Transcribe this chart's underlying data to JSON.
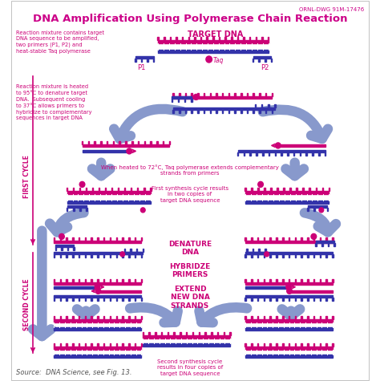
{
  "title": "DNA Amplification Using Polymerase Chain Reaction",
  "title_color": "#CC0088",
  "title_fontsize": 9.5,
  "bg_color": "#FFFFFF",
  "ornl_text": "ORNL-DWG 91M-17476",
  "ornl_color": "#CC0088",
  "ornl_fontsize": 5,
  "source_text": "Source:  DNA Science, see Fig. 13.",
  "source_color": "#555555",
  "source_fontsize": 6,
  "dna_pink": "#CC0077",
  "dna_blue": "#6666CC",
  "dna_dark_blue": "#3333AA",
  "strand_blue": "#9999CC",
  "arrow_color": "#8899CC",
  "text_color": "#CC0077",
  "first_cycle_label": "FIRST CYCLE",
  "second_cycle_label": "SECOND CYCLE",
  "step1_text": "Reaction mixture contains target\nDNA sequence to be amplified,\ntwo primers (P1, P2) and\nheat-stable Taq polymerase",
  "step2_text": "Reaction mixture is heated\nto 95°C to denature target\nDNA.  Subsequent cooling\nto 37°C allows primers to\nhybridize to complementary\nsequences in target DNA",
  "step3_text": "When heated to 72°C, Taq polymerase extends complementary\nstrands from primers",
  "step4_text": "First synthesis cycle results\nin two copies of\ntarget DNA sequence",
  "step5_text": "Second synthesis cycle\nresults in four copies of\ntarget DNA sequence",
  "denature_label": "DENATURE\nDNA",
  "hybridize_label": "HYBRIDZE\nPRIMERS",
  "extend_label": "EXTEND\nNEW DNA\nSTRANDS",
  "target_dna_label": "TARGET DNA",
  "p1_label": "P1",
  "p2_label": "P2",
  "taq_label": "Taq"
}
